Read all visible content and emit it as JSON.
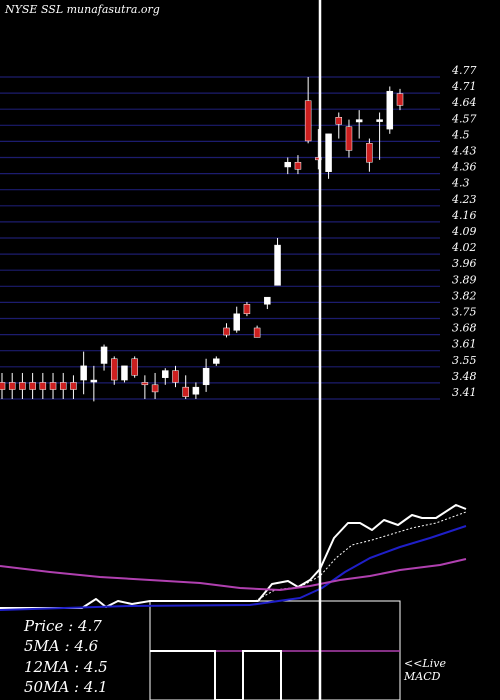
{
  "site_title": "NYSE SSL munafasutra.org",
  "stats": [
    {
      "label": "Price",
      "value": "4.7"
    },
    {
      "label": "5MA",
      "value": "4.6"
    },
    {
      "label": "12MA",
      "value": "4.5"
    },
    {
      "label": "50MA",
      "value": "4.1"
    }
  ],
  "live_label": "<<Live",
  "macd_label": "MACD",
  "colors": {
    "background": "#000000",
    "grid": "#1c1c6e",
    "up_candle": "#ffffff",
    "down_candle": "#cc1f1f",
    "wick": "#ffffff",
    "ma_fast": "#ffffff",
    "ma_mid": "#1f1fc8",
    "ma_slow": "#b040b0",
    "text": "#ffffff"
  },
  "chart_data": {
    "type": "candlestick",
    "price_ticks": [
      "4.77",
      "4.71",
      "4.64",
      "4.57",
      "4.5",
      "4.43",
      "4.36",
      "4.3",
      "4.23",
      "4.16",
      "4.09",
      "4.02",
      "3.96",
      "3.89",
      "3.82",
      "3.75",
      "3.68",
      "3.61",
      "3.55",
      "3.48",
      "3.41"
    ],
    "ylim": [
      3.41,
      4.77
    ],
    "candles": [
      {
        "o": 3.48,
        "h": 3.52,
        "l": 3.41,
        "c": 3.45
      },
      {
        "o": 3.48,
        "h": 3.52,
        "l": 3.41,
        "c": 3.45
      },
      {
        "o": 3.48,
        "h": 3.52,
        "l": 3.41,
        "c": 3.45
      },
      {
        "o": 3.48,
        "h": 3.52,
        "l": 3.41,
        "c": 3.45
      },
      {
        "o": 3.48,
        "h": 3.52,
        "l": 3.41,
        "c": 3.45
      },
      {
        "o": 3.48,
        "h": 3.52,
        "l": 3.41,
        "c": 3.45
      },
      {
        "o": 3.48,
        "h": 3.52,
        "l": 3.41,
        "c": 3.45
      },
      {
        "o": 3.48,
        "h": 3.51,
        "l": 3.41,
        "c": 3.45
      },
      {
        "o": 3.49,
        "h": 3.61,
        "l": 3.43,
        "c": 3.55
      },
      {
        "o": 3.49,
        "h": 3.55,
        "l": 3.4,
        "c": 3.49
      },
      {
        "o": 3.56,
        "h": 3.64,
        "l": 3.53,
        "c": 3.63
      },
      {
        "o": 3.58,
        "h": 3.59,
        "l": 3.47,
        "c": 3.49
      },
      {
        "o": 3.49,
        "h": 3.55,
        "l": 3.48,
        "c": 3.55
      },
      {
        "o": 3.58,
        "h": 3.59,
        "l": 3.5,
        "c": 3.51
      },
      {
        "o": 3.48,
        "h": 3.51,
        "l": 3.41,
        "c": 3.47
      },
      {
        "o": 3.47,
        "h": 3.52,
        "l": 3.41,
        "c": 3.44
      },
      {
        "o": 3.5,
        "h": 3.54,
        "l": 3.47,
        "c": 3.53
      },
      {
        "o": 3.53,
        "h": 3.55,
        "l": 3.46,
        "c": 3.48
      },
      {
        "o": 3.46,
        "h": 3.51,
        "l": 3.41,
        "c": 3.42
      },
      {
        "o": 3.43,
        "h": 3.48,
        "l": 3.41,
        "c": 3.46
      },
      {
        "o": 3.47,
        "h": 3.58,
        "l": 3.44,
        "c": 3.54
      },
      {
        "o": 3.56,
        "h": 3.59,
        "l": 3.55,
        "c": 3.58
      },
      {
        "o": 3.71,
        "h": 3.73,
        "l": 3.67,
        "c": 3.68
      },
      {
        "o": 3.7,
        "h": 3.8,
        "l": 3.69,
        "c": 3.77
      },
      {
        "o": 3.81,
        "h": 3.82,
        "l": 3.76,
        "c": 3.77
      },
      {
        "o": 3.71,
        "h": 3.72,
        "l": 3.67,
        "c": 3.67
      },
      {
        "o": 3.81,
        "h": 3.84,
        "l": 3.79,
        "c": 3.84
      },
      {
        "o": 3.89,
        "h": 4.09,
        "l": 3.89,
        "c": 4.06
      },
      {
        "o": 4.39,
        "h": 4.43,
        "l": 4.36,
        "c": 4.41
      },
      {
        "o": 4.41,
        "h": 4.44,
        "l": 4.36,
        "c": 4.38
      },
      {
        "o": 4.67,
        "h": 4.77,
        "l": 4.49,
        "c": 4.5
      },
      {
        "o": 4.43,
        "h": 4.55,
        "l": 4.38,
        "c": 4.42
      },
      {
        "o": 4.37,
        "h": 4.53,
        "l": 4.34,
        "c": 4.53
      },
      {
        "o": 4.6,
        "h": 4.62,
        "l": 4.51,
        "c": 4.57
      },
      {
        "o": 4.56,
        "h": 4.59,
        "l": 4.43,
        "c": 4.46
      },
      {
        "o": 4.58,
        "h": 4.63,
        "l": 4.51,
        "c": 4.59
      },
      {
        "o": 4.49,
        "h": 4.51,
        "l": 4.37,
        "c": 4.41
      },
      {
        "o": 4.59,
        "h": 4.62,
        "l": 4.42,
        "c": 4.59
      },
      {
        "o": 4.55,
        "h": 4.73,
        "l": 4.53,
        "c": 4.71
      },
      {
        "o": 4.7,
        "h": 4.72,
        "l": 4.63,
        "c": 4.65
      }
    ],
    "indicator_lines": [
      {
        "color": "#ffffff",
        "width": 2,
        "points": [
          [
            0,
            608
          ],
          [
            82,
            608
          ],
          [
            96,
            599
          ],
          [
            106,
            607
          ],
          [
            118,
            601
          ],
          [
            132,
            604
          ],
          [
            150,
            601
          ],
          [
            200,
            601
          ],
          [
            258,
            601
          ],
          [
            272,
            584
          ],
          [
            288,
            581
          ],
          [
            298,
            587
          ],
          [
            310,
            580
          ],
          [
            320,
            569
          ],
          [
            334,
            538
          ],
          [
            348,
            523
          ],
          [
            360,
            523
          ],
          [
            372,
            530
          ],
          [
            384,
            520
          ],
          [
            398,
            525
          ],
          [
            412,
            515
          ],
          [
            422,
            518
          ],
          [
            436,
            518
          ],
          [
            456,
            505
          ],
          [
            466,
            509
          ]
        ]
      },
      {
        "color": "#ffffff",
        "width": 1,
        "dashed": true,
        "points": [
          [
            255,
            601
          ],
          [
            275,
            590
          ],
          [
            300,
            587
          ],
          [
            320,
            576
          ],
          [
            336,
            558
          ],
          [
            352,
            545
          ],
          [
            372,
            540
          ],
          [
            392,
            534
          ],
          [
            412,
            528
          ],
          [
            436,
            523
          ],
          [
            466,
            512
          ]
        ]
      },
      {
        "color": "#1f1fc8",
        "width": 2,
        "points": [
          [
            0,
            610
          ],
          [
            130,
            606
          ],
          [
            250,
            605
          ],
          [
            300,
            598
          ],
          [
            322,
            588
          ],
          [
            345,
            572
          ],
          [
            370,
            558
          ],
          [
            400,
            547
          ],
          [
            430,
            538
          ],
          [
            466,
            526
          ]
        ]
      },
      {
        "color": "#b040b0",
        "width": 2,
        "points": [
          [
            0,
            566
          ],
          [
            50,
            572
          ],
          [
            100,
            577
          ],
          [
            150,
            580
          ],
          [
            200,
            583
          ],
          [
            240,
            588
          ],
          [
            280,
            590
          ],
          [
            310,
            586
          ],
          [
            340,
            580
          ],
          [
            370,
            576
          ],
          [
            400,
            570
          ],
          [
            440,
            565
          ],
          [
            466,
            559
          ]
        ]
      }
    ],
    "highlight_x": 320,
    "macd_box": {
      "x": 150,
      "y": 601,
      "w": 250,
      "h": 99
    },
    "macd_line": {
      "color": "#ffffff",
      "points": [
        [
          150,
          651
        ],
        [
          215,
          651
        ],
        [
          215,
          700
        ],
        [
          243,
          700
        ],
        [
          243,
          651
        ],
        [
          281,
          651
        ],
        [
          281,
          700
        ]
      ]
    },
    "macd_signal": {
      "color": "#b040b0",
      "points": [
        [
          150,
          651
        ],
        [
          400,
          651
        ]
      ]
    }
  }
}
